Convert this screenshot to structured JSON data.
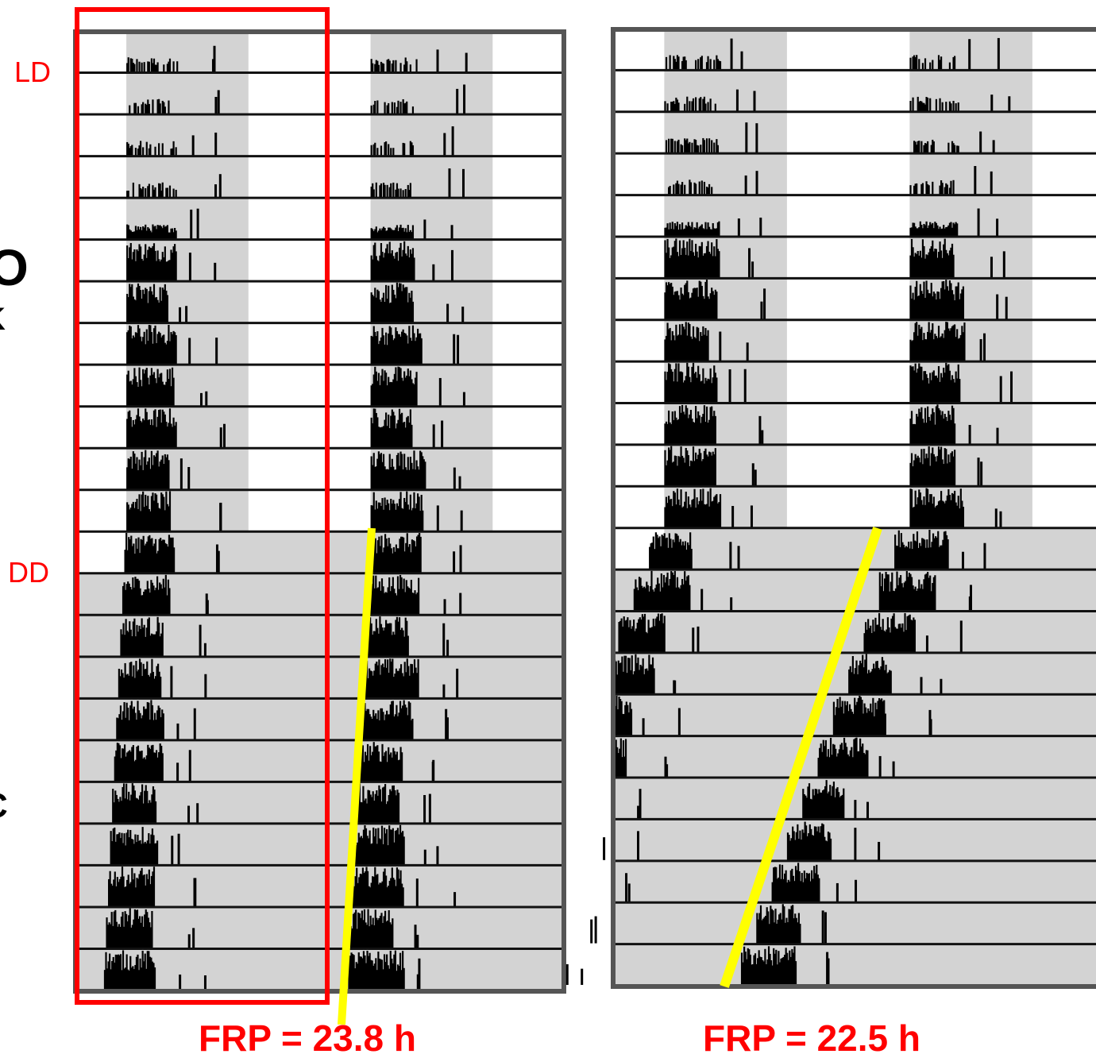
{
  "labels": {
    "ld": "LD",
    "dd": "DD",
    "frp_left": "FRP = 23.8 h",
    "frp_right": "FRP = 22.5 h",
    "edge_glyphs": [
      "O",
      "K",
      "C"
    ]
  },
  "colors": {
    "annotation": "#ff0000",
    "trend_line": "#ffff00",
    "dark_phase": "#d3d3d3",
    "panel_frame": "#555555",
    "activity": "#000000"
  },
  "actogram_left": {
    "days": 23,
    "ld_days": 12,
    "dark_start_hour": 5,
    "dark_end_hour": 17,
    "frp_hours": 23.8,
    "highlighted_columns": "first"
  },
  "actogram_right": {
    "days": 23,
    "ld_days": 12,
    "dark_start_hour": 5,
    "dark_end_hour": 17,
    "frp_hours": 22.5
  }
}
